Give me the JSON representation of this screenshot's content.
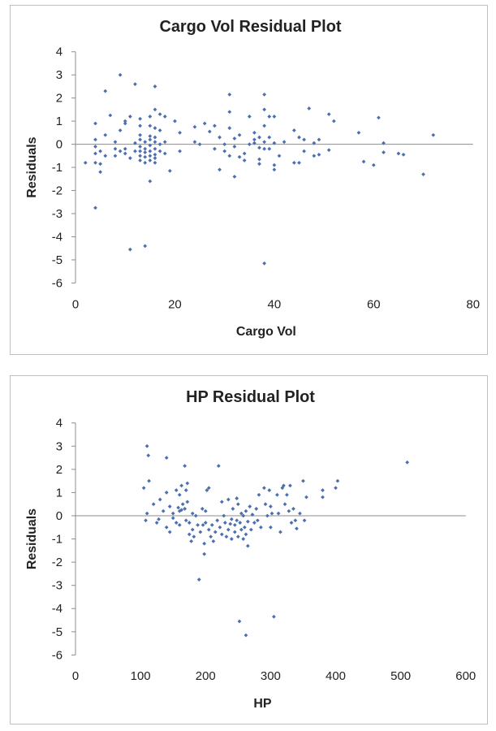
{
  "chart_data": [
    {
      "type": "scatter",
      "title": "Cargo Vol  Residual Plot",
      "xlabel": "Cargo Vol",
      "ylabel": "Residuals",
      "xlim": [
        0,
        80
      ],
      "ylim": [
        -6,
        4
      ],
      "x_ticks": [
        "0",
        "20",
        "40",
        "60",
        "80"
      ],
      "y_ticks": [
        "4",
        "3",
        "2",
        "1",
        "0",
        "-1",
        "-2",
        "-3",
        "-4",
        "-5",
        "-6"
      ],
      "grid": false,
      "series": [
        {
          "color": "#4a70b0",
          "points": [
            [
              2,
              -0.8
            ],
            [
              4,
              0.9
            ],
            [
              4,
              0.2
            ],
            [
              4,
              -0.1
            ],
            [
              4,
              -0.4
            ],
            [
              4,
              -0.8
            ],
            [
              4,
              -2.75
            ],
            [
              5,
              -0.3
            ],
            [
              5,
              -0.85
            ],
            [
              5,
              -1.2
            ],
            [
              6,
              2.3
            ],
            [
              6,
              0.4
            ],
            [
              6,
              -0.5
            ],
            [
              7,
              1.25
            ],
            [
              8,
              0.1
            ],
            [
              8,
              -0.2
            ],
            [
              8,
              -0.5
            ],
            [
              9,
              3.0
            ],
            [
              9,
              0.6
            ],
            [
              9,
              -0.3
            ],
            [
              10,
              1.0
            ],
            [
              10,
              0.9
            ],
            [
              10,
              -0.2
            ],
            [
              10,
              -0.4
            ],
            [
              11,
              1.2
            ],
            [
              11,
              -0.6
            ],
            [
              11,
              -4.55
            ],
            [
              12,
              2.6
            ],
            [
              12,
              0.05
            ],
            [
              12,
              -0.3
            ],
            [
              13,
              1.1
            ],
            [
              13,
              0.8
            ],
            [
              13,
              0.4
            ],
            [
              13,
              0.2
            ],
            [
              13,
              -0.1
            ],
            [
              13,
              -0.3
            ],
            [
              13,
              -0.5
            ],
            [
              13,
              -0.7
            ],
            [
              14,
              0.1
            ],
            [
              14,
              -0.2
            ],
            [
              14,
              -0.35
            ],
            [
              14,
              -0.55
            ],
            [
              14,
              -0.8
            ],
            [
              14,
              -4.4
            ],
            [
              15,
              1.2
            ],
            [
              15,
              0.8
            ],
            [
              15,
              0.35
            ],
            [
              15,
              0.2
            ],
            [
              15,
              -0.05
            ],
            [
              15,
              -0.3
            ],
            [
              15,
              -0.5
            ],
            [
              15,
              -0.7
            ],
            [
              15,
              -1.6
            ],
            [
              16,
              2.5
            ],
            [
              16,
              1.5
            ],
            [
              16,
              0.7
            ],
            [
              16,
              0.3
            ],
            [
              16,
              0.1
            ],
            [
              16,
              -0.2
            ],
            [
              16,
              -0.45
            ],
            [
              16,
              -0.6
            ],
            [
              16,
              -0.8
            ],
            [
              17,
              1.3
            ],
            [
              17,
              0.6
            ],
            [
              17,
              0.0
            ],
            [
              17,
              -0.3
            ],
            [
              18,
              1.2
            ],
            [
              18,
              0.1
            ],
            [
              18,
              -0.4
            ],
            [
              19,
              -1.15
            ],
            [
              20,
              1.0
            ],
            [
              21,
              0.5
            ],
            [
              21,
              -0.3
            ],
            [
              24,
              0.75
            ],
            [
              24,
              0.1
            ],
            [
              25,
              0.0
            ],
            [
              26,
              0.9
            ],
            [
              27,
              0.55
            ],
            [
              28,
              0.8
            ],
            [
              28,
              -0.2
            ],
            [
              29,
              0.3
            ],
            [
              29,
              -1.1
            ],
            [
              30,
              0.0
            ],
            [
              30,
              -0.3
            ],
            [
              31,
              2.15
            ],
            [
              31,
              1.4
            ],
            [
              31,
              0.7
            ],
            [
              31,
              -0.5
            ],
            [
              32,
              0.25
            ],
            [
              32,
              -0.1
            ],
            [
              32,
              -1.4
            ],
            [
              33,
              0.4
            ],
            [
              33,
              -0.55
            ],
            [
              34,
              -0.7
            ],
            [
              34,
              -0.4
            ],
            [
              35,
              1.2
            ],
            [
              35,
              0.0
            ],
            [
              36,
              0.5
            ],
            [
              36,
              0.2
            ],
            [
              36,
              0.05
            ],
            [
              37,
              0.3
            ],
            [
              37,
              -0.15
            ],
            [
              37,
              -0.65
            ],
            [
              37,
              -0.85
            ],
            [
              38,
              2.15
            ],
            [
              38,
              1.5
            ],
            [
              38,
              0.8
            ],
            [
              38,
              0.1
            ],
            [
              38,
              -0.2
            ],
            [
              38,
              -5.15
            ],
            [
              39,
              1.2
            ],
            [
              39,
              0.3
            ],
            [
              39,
              -0.2
            ],
            [
              40,
              1.2
            ],
            [
              40,
              0.05
            ],
            [
              40,
              -0.9
            ],
            [
              40,
              -1.1
            ],
            [
              41,
              -0.5
            ],
            [
              42,
              0.1
            ],
            [
              44,
              0.6
            ],
            [
              44,
              -0.8
            ],
            [
              45,
              0.3
            ],
            [
              45,
              -0.8
            ],
            [
              46,
              0.2
            ],
            [
              46,
              -0.3
            ],
            [
              47,
              1.55
            ],
            [
              48,
              0.05
            ],
            [
              48,
              -0.5
            ],
            [
              49,
              0.2
            ],
            [
              49,
              -0.45
            ],
            [
              51,
              1.3
            ],
            [
              51,
              -0.25
            ],
            [
              52,
              1.0
            ],
            [
              57,
              0.5
            ],
            [
              58,
              -0.75
            ],
            [
              60,
              -0.9
            ],
            [
              61,
              1.15
            ],
            [
              62,
              0.05
            ],
            [
              62,
              -0.35
            ],
            [
              65,
              -0.4
            ],
            [
              66,
              -0.45
            ],
            [
              70,
              -1.3
            ],
            [
              72,
              0.4
            ]
          ]
        }
      ]
    },
    {
      "type": "scatter",
      "title": "HP  Residual Plot",
      "xlabel": "HP",
      "ylabel": "Residuals",
      "xlim": [
        0,
        600
      ],
      "ylim": [
        -6,
        4
      ],
      "x_ticks": [
        "0",
        "100",
        "200",
        "300",
        "400",
        "500",
        "600"
      ],
      "y_ticks": [
        "4",
        "3",
        "2",
        "1",
        "0",
        "-1",
        "-2",
        "-3",
        "-4",
        "-5",
        "-6"
      ],
      "grid": false,
      "series": [
        {
          "color": "#4a70b0",
          "points": [
            [
              105,
              1.2
            ],
            [
              108,
              -0.2
            ],
            [
              110,
              3.0
            ],
            [
              110,
              0.1
            ],
            [
              112,
              2.6
            ],
            [
              113,
              1.5
            ],
            [
              120,
              0.5
            ],
            [
              125,
              -0.3
            ],
            [
              128,
              -0.15
            ],
            [
              130,
              0.7
            ],
            [
              135,
              0.2
            ],
            [
              140,
              2.5
            ],
            [
              140,
              1.0
            ],
            [
              140,
              -0.5
            ],
            [
              145,
              0.4
            ],
            [
              145,
              -0.7
            ],
            [
              150,
              0.1
            ],
            [
              150,
              -0.1
            ],
            [
              155,
              1.1
            ],
            [
              155,
              -0.3
            ],
            [
              158,
              0.35
            ],
            [
              160,
              0.9
            ],
            [
              160,
              0.2
            ],
            [
              160,
              -0.4
            ],
            [
              163,
              1.3
            ],
            [
              163,
              0.25
            ],
            [
              165,
              0.5
            ],
            [
              168,
              2.15
            ],
            [
              168,
              0.3
            ],
            [
              170,
              1.1
            ],
            [
              170,
              -0.2
            ],
            [
              172,
              1.4
            ],
            [
              172,
              0.6
            ],
            [
              175,
              -0.8
            ],
            [
              175,
              -0.3
            ],
            [
              178,
              -1.1
            ],
            [
              180,
              0.1
            ],
            [
              180,
              -0.6
            ],
            [
              182,
              -0.9
            ],
            [
              185,
              0.0
            ],
            [
              188,
              -0.4
            ],
            [
              190,
              -2.75
            ],
            [
              192,
              -0.7
            ],
            [
              195,
              0.3
            ],
            [
              196,
              -0.4
            ],
            [
              198,
              -1.2
            ],
            [
              198,
              -1.65
            ],
            [
              200,
              0.2
            ],
            [
              200,
              -0.3
            ],
            [
              202,
              1.1
            ],
            [
              205,
              1.2
            ],
            [
              205,
              -0.6
            ],
            [
              208,
              -0.9
            ],
            [
              210,
              -0.4
            ],
            [
              212,
              -1.1
            ],
            [
              215,
              -0.7
            ],
            [
              218,
              -0.2
            ],
            [
              220,
              2.15
            ],
            [
              222,
              -0.5
            ],
            [
              225,
              0.6
            ],
            [
              225,
              -0.8
            ],
            [
              228,
              0.0
            ],
            [
              230,
              -0.3
            ],
            [
              232,
              -0.9
            ],
            [
              235,
              0.7
            ],
            [
              235,
              -0.6
            ],
            [
              238,
              -0.35
            ],
            [
              240,
              -1.0
            ],
            [
              240,
              -0.15
            ],
            [
              242,
              0.3
            ],
            [
              245,
              -0.4
            ],
            [
              245,
              -0.7
            ],
            [
              248,
              0.75
            ],
            [
              248,
              -0.2
            ],
            [
              250,
              0.5
            ],
            [
              250,
              -0.9
            ],
            [
              252,
              -4.55
            ],
            [
              253,
              -0.3
            ],
            [
              255,
              0.1
            ],
            [
              255,
              -0.6
            ],
            [
              258,
              0.0
            ],
            [
              258,
              -1.0
            ],
            [
              260,
              -0.5
            ],
            [
              262,
              0.2
            ],
            [
              262,
              -0.8
            ],
            [
              262,
              -5.15
            ],
            [
              265,
              -0.25
            ],
            [
              265,
              -1.3
            ],
            [
              268,
              0.4
            ],
            [
              270,
              -0.6
            ],
            [
              272,
              0.05
            ],
            [
              275,
              -0.3
            ],
            [
              278,
              0.3
            ],
            [
              280,
              -0.2
            ],
            [
              282,
              0.9
            ],
            [
              285,
              -0.5
            ],
            [
              290,
              1.2
            ],
            [
              292,
              0.5
            ],
            [
              295,
              0.0
            ],
            [
              298,
              1.1
            ],
            [
              300,
              0.4
            ],
            [
              300,
              -0.5
            ],
            [
              302,
              0.1
            ],
            [
              305,
              -4.35
            ],
            [
              310,
              0.9
            ],
            [
              312,
              0.1
            ],
            [
              315,
              -0.7
            ],
            [
              318,
              1.2
            ],
            [
              320,
              1.3
            ],
            [
              322,
              0.5
            ],
            [
              325,
              0.9
            ],
            [
              328,
              0.2
            ],
            [
              330,
              1.3
            ],
            [
              332,
              -0.3
            ],
            [
              335,
              0.3
            ],
            [
              338,
              -0.2
            ],
            [
              340,
              -0.55
            ],
            [
              345,
              0.1
            ],
            [
              350,
              1.5
            ],
            [
              352,
              -0.2
            ],
            [
              355,
              0.8
            ],
            [
              380,
              1.1
            ],
            [
              380,
              0.8
            ],
            [
              400,
              1.2
            ],
            [
              403,
              1.5
            ],
            [
              510,
              2.3
            ]
          ]
        }
      ]
    }
  ]
}
